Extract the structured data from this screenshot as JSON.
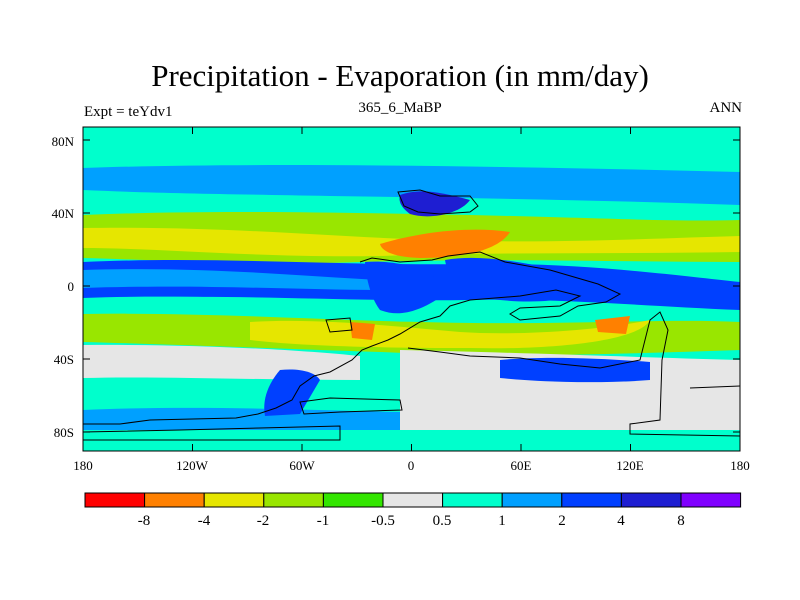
{
  "title": "Precipitation - Evaporation (in mm/day)",
  "subtitle": "365_6_MaBP",
  "left_label": "Expt = teYdv1",
  "right_label": "ANN",
  "lat_ticks": [
    "80N",
    "40N",
    "0",
    "40S",
    "80S"
  ],
  "lon_ticks": [
    "180",
    "120W",
    "60W",
    "0",
    "60E",
    "120E",
    "180"
  ],
  "colorbar": {
    "colors": [
      "#ff0000",
      "#ff8000",
      "#e6e600",
      "#99e600",
      "#33e600",
      "#e6e6e6",
      "#00ffcc",
      "#00a0ff",
      "#0040ff",
      "#1e1ed2",
      "#8000ff"
    ],
    "labels": [
      "-8",
      "-4",
      "-2",
      "-1",
      "-0.5",
      "0.5",
      "1",
      "2",
      "4",
      "8"
    ]
  }
}
